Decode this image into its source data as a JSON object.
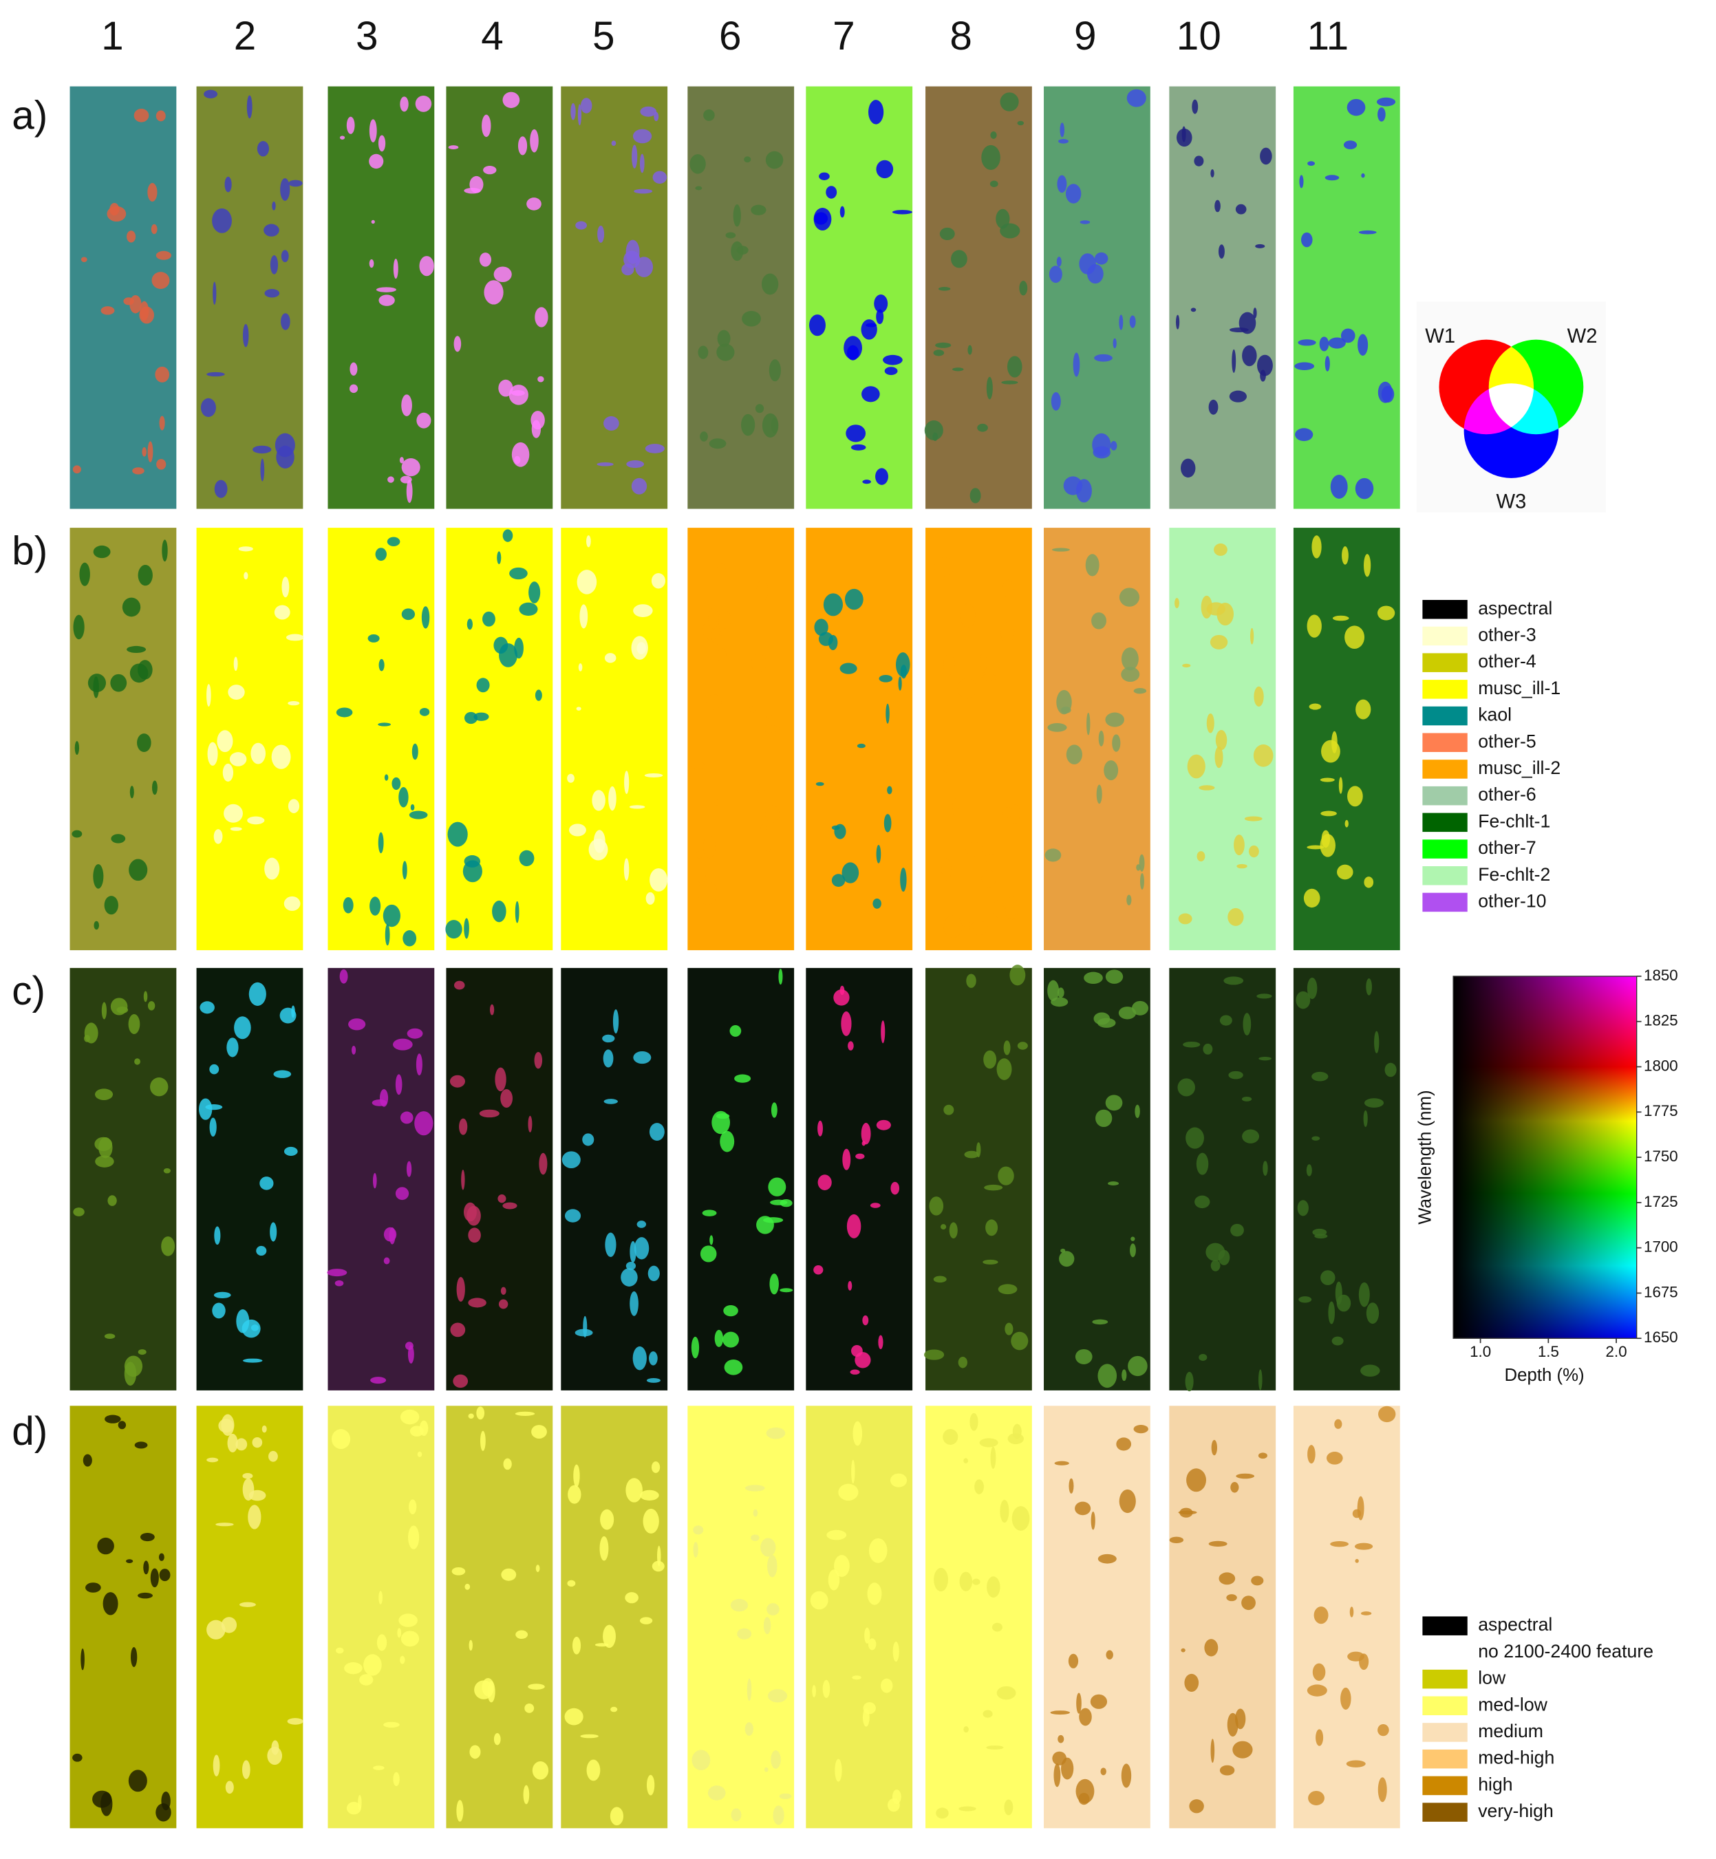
{
  "column_labels": [
    "1",
    "2",
    "3",
    "4",
    "5",
    "6",
    "7",
    "8",
    "9",
    "10",
    "11"
  ],
  "row_labels": [
    "a)",
    "b)",
    "c)",
    "d)"
  ],
  "rgb_key": {
    "labels": [
      "W1",
      "W2",
      "W3"
    ]
  },
  "mineral_legend": {
    "items": [
      {
        "label": "aspectral",
        "color": "#000000"
      },
      {
        "label": "other-3",
        "color": "#ffffcc"
      },
      {
        "label": "other-4",
        "color": "#cccc00"
      },
      {
        "label": "musc_ill-1",
        "color": "#ffff00"
      },
      {
        "label": "kaol",
        "color": "#008b8b"
      },
      {
        "label": "other-5",
        "color": "#ff7f50"
      },
      {
        "label": "musc_ill-2",
        "color": "#ffa500"
      },
      {
        "label": "other-6",
        "color": "#a0cca8"
      },
      {
        "label": "Fe-chlt-1",
        "color": "#006400"
      },
      {
        "label": "other-7",
        "color": "#00ff00"
      },
      {
        "label": "Fe-chlt-2",
        "color": "#b0f5b0"
      },
      {
        "label": "other-10",
        "color": "#b050f0"
      }
    ]
  },
  "colorbar": {
    "ylabel": "Wavelength (nm)",
    "xlabel": "Depth (%)",
    "ylim": [
      1650,
      1850
    ],
    "yticks": [
      1650,
      1675,
      1700,
      1725,
      1750,
      1775,
      1800,
      1825,
      1850
    ],
    "xlim": [
      0.8,
      2.15
    ],
    "xticks": [
      {
        "value": 1,
        "label": "1.0"
      },
      {
        "value": 1.5,
        "label": "1.5"
      },
      {
        "value": 2,
        "label": "2.0"
      }
    ]
  },
  "intensity_legend": {
    "items": [
      {
        "label": "aspectral",
        "color": "#000000"
      },
      {
        "label": "no 2100-2400 feature",
        "color": "#ffffff"
      },
      {
        "label": "low",
        "color": "#cccc00"
      },
      {
        "label": "med-low",
        "color": "#ffff66"
      },
      {
        "label": "medium",
        "color": "#fae0b8"
      },
      {
        "label": "med-high",
        "color": "#ffc870"
      },
      {
        "label": "high",
        "color": "#cc8800"
      },
      {
        "label": "very-high",
        "color": "#8b5a00"
      }
    ]
  }
}
